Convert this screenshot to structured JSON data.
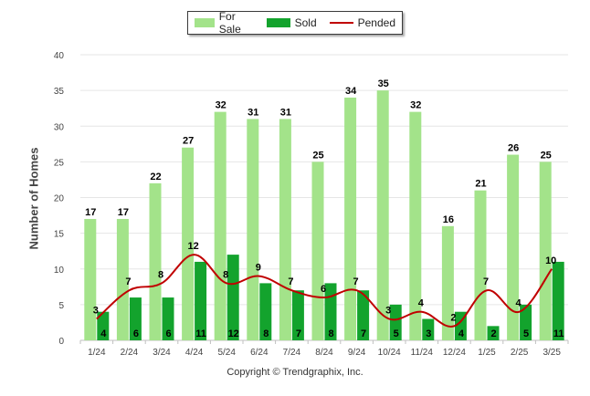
{
  "chart_data": {
    "type": "bar",
    "categories": [
      "1/24",
      "2/24",
      "3/24",
      "4/24",
      "5/24",
      "6/24",
      "7/24",
      "8/24",
      "9/24",
      "10/24",
      "11/24",
      "12/24",
      "1/25",
      "2/25",
      "3/25"
    ],
    "series": [
      {
        "name": "For Sale",
        "type": "bar",
        "color": "#a3e38a",
        "values": [
          17,
          17,
          22,
          27,
          32,
          31,
          31,
          25,
          34,
          35,
          32,
          16,
          21,
          26,
          25
        ]
      },
      {
        "name": "Sold",
        "type": "bar",
        "color": "#13a32d",
        "values": [
          4,
          6,
          6,
          11,
          12,
          8,
          7,
          8,
          7,
          5,
          3,
          4,
          2,
          5,
          11
        ]
      },
      {
        "name": "Pended",
        "type": "line",
        "color": "#c00000",
        "values": [
          3,
          7,
          8,
          12,
          8,
          9,
          7,
          6,
          7,
          3,
          4,
          2,
          7,
          4,
          10
        ]
      }
    ],
    "ylabel": "Number of Homes",
    "ylim": [
      0,
      40
    ],
    "yticks": [
      0,
      5,
      10,
      15,
      20,
      25,
      30,
      35,
      40
    ],
    "grid": true,
    "legend_position": "top-center"
  },
  "copyright": "Copyright © Trendgraphix, Inc."
}
